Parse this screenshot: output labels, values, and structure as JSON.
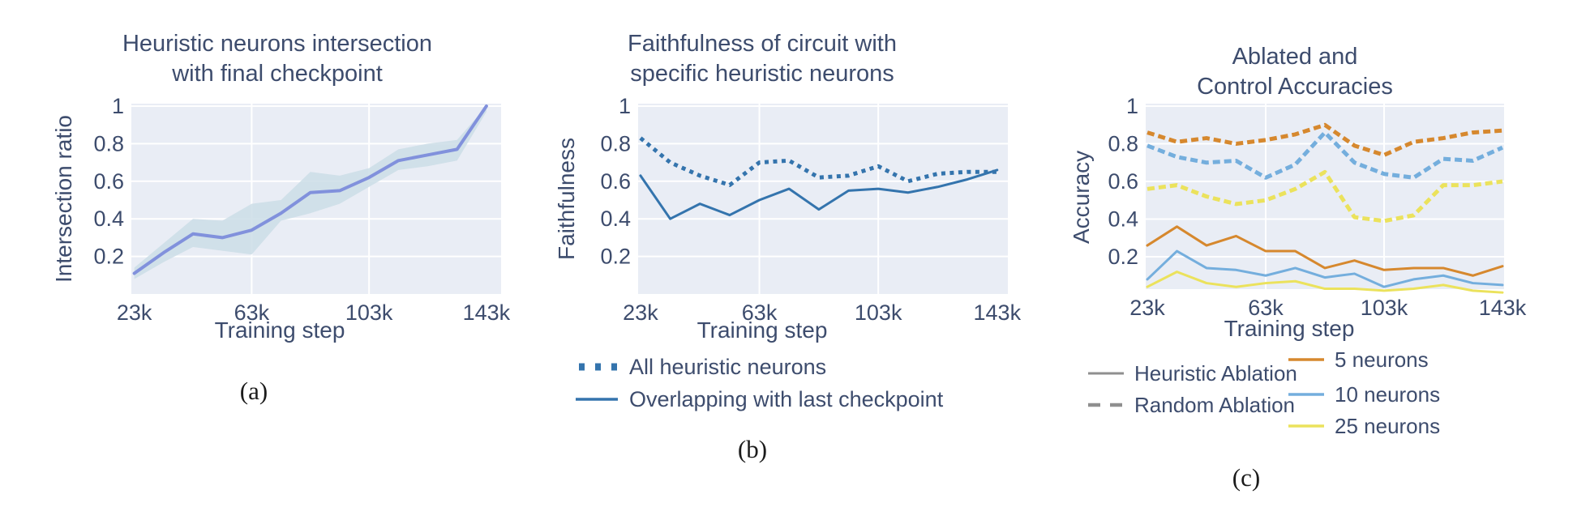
{
  "figure": {
    "background": "#ffffff",
    "plot_bg": "#e9edf5",
    "grid_color": "#ffffff",
    "text_color": "#3d4c6d",
    "caption_color": "#1b1b1b"
  },
  "charts": [
    {
      "id": "a",
      "caption": "(a)",
      "title_lines": [
        "Heuristic neurons intersection",
        "with final checkpoint"
      ],
      "xlabel": "Training step",
      "ylabel": "Intersection ratio",
      "chart_data": {
        "type": "line",
        "x": [
          23,
          33,
          43,
          53,
          63,
          73,
          83,
          93,
          103,
          113,
          123,
          133,
          143
        ],
        "xlim": [
          22,
          148
        ],
        "ylim": [
          0,
          1.013
        ],
        "xtick_values": [
          23,
          63,
          103,
          143
        ],
        "xtick_labels": [
          "23k",
          "63k",
          "103k",
          "143k"
        ],
        "xgrid_values": [
          63,
          103
        ],
        "ytick_values": [
          0.2,
          0.4,
          0.6,
          0.8,
          1
        ],
        "ytick_labels": [
          "0.2",
          "0.4",
          "0.6",
          "0.8",
          "1"
        ],
        "series": [
          {
            "name": "Intersection ratio (mean)",
            "color": "#8191dc",
            "dash": "solid",
            "width": 4,
            "values": [
              0.11,
              0.22,
              0.32,
              0.3,
              0.34,
              0.43,
              0.54,
              0.55,
              0.62,
              0.71,
              0.74,
              0.77,
              1.0
            ]
          }
        ],
        "band": {
          "name": "confidence band",
          "color": "#cbdde6",
          "opacity": 0.85,
          "lower": [
            0.08,
            0.17,
            0.25,
            0.23,
            0.21,
            0.39,
            0.43,
            0.48,
            0.57,
            0.66,
            0.68,
            0.71,
            0.97
          ],
          "upper": [
            0.14,
            0.27,
            0.4,
            0.39,
            0.48,
            0.5,
            0.65,
            0.63,
            0.67,
            0.77,
            0.8,
            0.82,
            1.0
          ]
        }
      }
    },
    {
      "id": "b",
      "caption": "(b)",
      "title_lines": [
        "Faithfulness of circuit with",
        "specific heuristic neurons"
      ],
      "xlabel": "Training step",
      "ylabel": "Faithfulness",
      "legend": [
        {
          "label": "All heuristic neurons",
          "color": "#3474ad",
          "dash": "dot"
        },
        {
          "label": "Overlapping with last checkpoint",
          "color": "#3474ad",
          "dash": "solid"
        }
      ],
      "chart_data": {
        "type": "line",
        "x": [
          23,
          33,
          43,
          53,
          63,
          73,
          83,
          93,
          103,
          113,
          123,
          133,
          143
        ],
        "xlim": [
          22.2,
          146.6
        ],
        "ylim": [
          0,
          1.013
        ],
        "xtick_values": [
          23,
          63,
          103,
          143
        ],
        "xtick_labels": [
          "23k",
          "63k",
          "103k",
          "143k"
        ],
        "xgrid_values": [
          63,
          103
        ],
        "ytick_values": [
          0.2,
          0.4,
          0.6,
          0.8,
          1
        ],
        "ytick_labels": [
          "0.2",
          "0.4",
          "0.6",
          "0.8",
          "1"
        ],
        "series": [
          {
            "name": "All heuristic neurons",
            "color": "#3474ad",
            "dash": "dot",
            "width": 5,
            "values": [
              0.83,
              0.7,
              0.63,
              0.58,
              0.7,
              0.71,
              0.62,
              0.63,
              0.68,
              0.6,
              0.64,
              0.65,
              0.65
            ]
          },
          {
            "name": "Overlapping with last checkpoint",
            "color": "#3474ad",
            "dash": "solid",
            "width": 3,
            "values": [
              0.63,
              0.4,
              0.48,
              0.42,
              0.5,
              0.56,
              0.45,
              0.55,
              0.56,
              0.54,
              0.57,
              0.61,
              0.66
            ]
          }
        ]
      }
    },
    {
      "id": "c",
      "caption": "(c)",
      "title_lines": [
        "Ablated and",
        "Control Accuracies"
      ],
      "xlabel": "Training step",
      "ylabel": "Accuracy",
      "legend_left": [
        {
          "label": "Heuristic Ablation",
          "color": "#8f8f8f",
          "dash": "solid"
        },
        {
          "label": "Random Ablation",
          "color": "#8f8f8f",
          "dash": "dash"
        }
      ],
      "legend_right": [
        {
          "label": "5 neurons",
          "color": "#d6882e"
        },
        {
          "label": "10 neurons",
          "color": "#74aedd"
        },
        {
          "label": "25 neurons",
          "color": "#ebe25c"
        }
      ],
      "chart_data": {
        "type": "line",
        "x": [
          23,
          33,
          43,
          53,
          63,
          73,
          83,
          93,
          103,
          113,
          123,
          133,
          143
        ],
        "xlim": [
          22.45,
          143.55
        ],
        "ylim": [
          0.028,
          1.013
        ],
        "xtick_values": [
          23,
          63,
          103,
          143
        ],
        "xtick_labels": [
          "23k",
          "63k",
          "103k",
          "143k"
        ],
        "xgrid_values": [
          63,
          103
        ],
        "ytick_values": [
          0.2,
          0.4,
          0.6,
          0.8,
          1
        ],
        "ytick_labels": [
          "0.2",
          "0.4",
          "0.6",
          "0.8",
          "1"
        ],
        "series": [
          {
            "name": "Random Ablation - 5 neurons",
            "color": "#d6882e",
            "dash": "dash",
            "width": 5,
            "values": [
              0.86,
              0.81,
              0.83,
              0.8,
              0.82,
              0.85,
              0.9,
              0.79,
              0.74,
              0.81,
              0.83,
              0.86,
              0.87
            ]
          },
          {
            "name": "Random Ablation - 10 neurons",
            "color": "#74aedd",
            "dash": "dash",
            "width": 5,
            "values": [
              0.79,
              0.73,
              0.7,
              0.71,
              0.62,
              0.69,
              0.86,
              0.7,
              0.64,
              0.62,
              0.72,
              0.71,
              0.78
            ]
          },
          {
            "name": "Random Ablation - 25 neurons",
            "color": "#ebe25c",
            "dash": "dash",
            "width": 5,
            "values": [
              0.56,
              0.58,
              0.52,
              0.48,
              0.5,
              0.56,
              0.65,
              0.41,
              0.39,
              0.42,
              0.58,
              0.58,
              0.6
            ]
          },
          {
            "name": "Heuristic Ablation - 5 neurons",
            "color": "#d6882e",
            "dash": "solid",
            "width": 3,
            "values": [
              0.26,
              0.36,
              0.26,
              0.31,
              0.23,
              0.23,
              0.14,
              0.18,
              0.13,
              0.14,
              0.14,
              0.1,
              0.15
            ]
          },
          {
            "name": "Heuristic Ablation - 10 neurons",
            "color": "#74aedd",
            "dash": "solid",
            "width": 3,
            "values": [
              0.08,
              0.23,
              0.14,
              0.13,
              0.1,
              0.14,
              0.09,
              0.11,
              0.04,
              0.08,
              0.1,
              0.06,
              0.05
            ]
          },
          {
            "name": "Heuristic Ablation - 25 neurons",
            "color": "#ebe25c",
            "dash": "solid",
            "width": 3,
            "values": [
              0.04,
              0.12,
              0.06,
              0.04,
              0.06,
              0.07,
              0.03,
              0.03,
              0.02,
              0.03,
              0.05,
              0.02,
              0.01
            ]
          }
        ]
      }
    }
  ]
}
